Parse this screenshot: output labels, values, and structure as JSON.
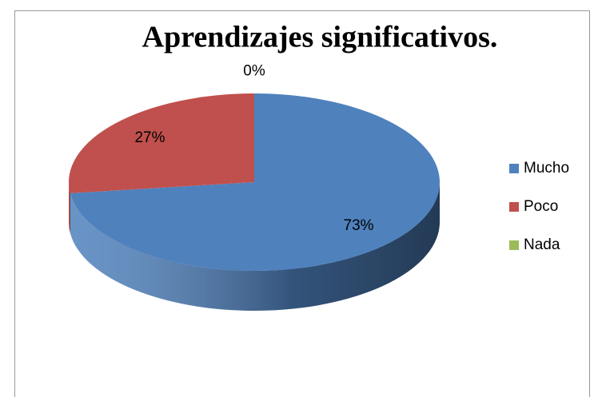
{
  "chart_data": {
    "type": "pie",
    "title": "Aprendizajes significativos.",
    "categories": [
      "Mucho",
      "Poco",
      "Nada"
    ],
    "values": [
      73,
      27,
      0
    ],
    "value_labels": [
      "73%",
      "27%",
      "0%"
    ],
    "colors": [
      "#4f81bd",
      "#c0504d",
      "#9bbb59"
    ],
    "legend": "right"
  }
}
